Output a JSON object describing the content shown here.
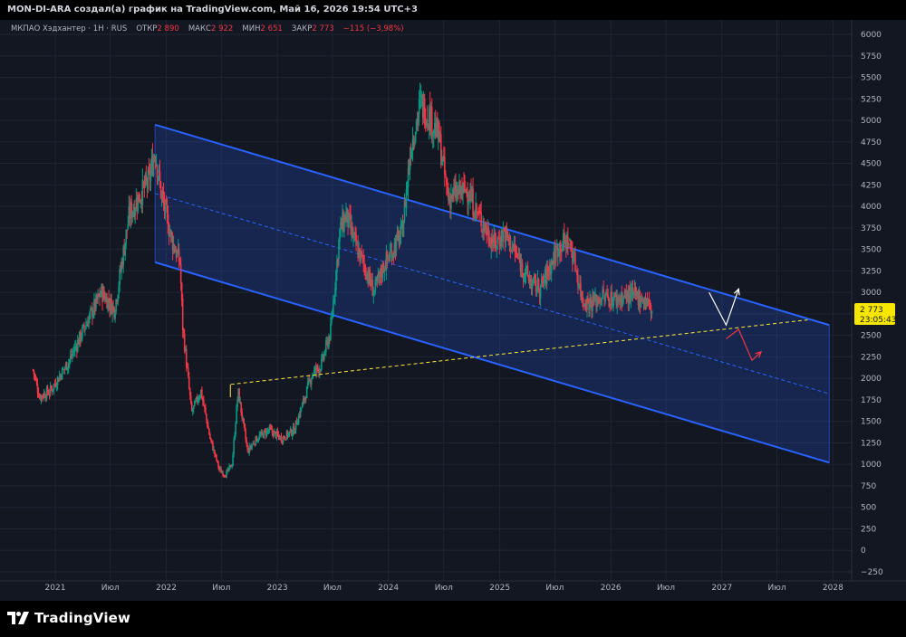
{
  "header": {
    "caption": "MON-DI-ARA создал(а) график на TradingView.com, Май 16, 2026 19:54 UTC+3"
  },
  "legend": {
    "symbol": "МКПАО Хэдхантер · 1Н · RUS",
    "open_label": "ОТКР",
    "open_value": "2 890",
    "high_label": "МАКС",
    "high_value": "2 922",
    "low_label": "МИН",
    "low_value": "2 651",
    "close_label": "ЗАКР",
    "close_value": "2 773",
    "change": "−115 (−3,98%)"
  },
  "price_badge": {
    "price": "2 773",
    "countdown": "23:05:43"
  },
  "footer": {
    "brand": "TradingView"
  },
  "colors": {
    "up": "#089981",
    "down": "#f23645",
    "channel": "#2962ff",
    "background": "#131722",
    "trendline": "#ffeb3b"
  },
  "chart_data": {
    "type": "candlestick",
    "y_axis": {
      "ticks": [
        "6000",
        "5750",
        "5500",
        "5250",
        "5000",
        "4750",
        "4500",
        "4250",
        "4000",
        "3750",
        "3500",
        "3250",
        "3000",
        "2750",
        "2500",
        "2250",
        "2000",
        "1750",
        "1500",
        "1250",
        "1000",
        "750",
        "500",
        "250",
        "0",
        "−250"
      ],
      "range": [
        -250,
        6000
      ]
    },
    "x_axis": {
      "ticks": [
        "2021",
        "Июл",
        "2022",
        "Июл",
        "2023",
        "Июл",
        "2024",
        "Июл",
        "2025",
        "Июл",
        "2026",
        "Июл",
        "2027",
        "Июл",
        "2028"
      ],
      "range": [
        "2020-09-01",
        "2028-05-01"
      ]
    },
    "price_path": [
      [
        "2020-10-20",
        2100
      ],
      [
        "2020-11-10",
        1790
      ],
      [
        "2020-12-15",
        1850
      ],
      [
        "2021-02-15",
        2200
      ],
      [
        "2021-04-15",
        2650
      ],
      [
        "2021-06-01",
        3000
      ],
      [
        "2021-07-15",
        2800
      ],
      [
        "2021-09-01",
        3900
      ],
      [
        "2021-10-01",
        4100
      ],
      [
        "2021-11-05",
        4300
      ],
      [
        "2021-11-25",
        4650
      ],
      [
        "2021-12-15",
        4150
      ],
      [
        "2022-01-20",
        3600
      ],
      [
        "2022-02-15",
        3350
      ],
      [
        "2022-02-24",
        2600
      ],
      [
        "2022-03-25",
        1600
      ],
      [
        "2022-04-25",
        1850
      ],
      [
        "2022-05-25",
        1300
      ],
      [
        "2022-06-25",
        930
      ],
      [
        "2022-07-15",
        880
      ],
      [
        "2022-08-05",
        1000
      ],
      [
        "2022-08-25",
        1850
      ],
      [
        "2022-09-25",
        1150
      ],
      [
        "2022-10-25",
        1300
      ],
      [
        "2022-12-05",
        1400
      ],
      [
        "2023-01-15",
        1300
      ],
      [
        "2023-02-25",
        1400
      ],
      [
        "2023-03-25",
        1700
      ],
      [
        "2023-04-25",
        2050
      ],
      [
        "2023-05-25",
        2150
      ],
      [
        "2023-06-25",
        2550
      ],
      [
        "2023-07-25",
        3700
      ],
      [
        "2023-08-15",
        3900
      ],
      [
        "2023-09-15",
        3550
      ],
      [
        "2023-10-15",
        3300
      ],
      [
        "2023-11-15",
        3000
      ],
      [
        "2023-12-15",
        3300
      ],
      [
        "2024-01-15",
        3500
      ],
      [
        "2024-02-15",
        3700
      ],
      [
        "2024-03-15",
        4700
      ],
      [
        "2024-04-15",
        5200
      ],
      [
        "2024-05-15",
        5050
      ],
      [
        "2024-06-15",
        4800
      ],
      [
        "2024-07-15",
        4100
      ],
      [
        "2024-08-15",
        4150
      ],
      [
        "2024-09-15",
        4200
      ],
      [
        "2024-10-15",
        3950
      ],
      [
        "2024-11-15",
        3750
      ],
      [
        "2024-12-15",
        3550
      ],
      [
        "2025-01-15",
        3700
      ],
      [
        "2025-02-15",
        3500
      ],
      [
        "2025-03-15",
        3300
      ],
      [
        "2025-04-15",
        3100
      ],
      [
        "2025-05-15",
        3050
      ],
      [
        "2025-06-15",
        3300
      ],
      [
        "2025-07-15",
        3550
      ],
      [
        "2025-08-15",
        3600
      ],
      [
        "2025-09-01",
        3400
      ],
      [
        "2025-10-01",
        2900
      ],
      [
        "2025-11-01",
        2880
      ],
      [
        "2025-12-01",
        2950
      ],
      [
        "2026-01-15",
        2920
      ],
      [
        "2026-03-01",
        2960
      ],
      [
        "2026-04-01",
        2950
      ],
      [
        "2026-05-01",
        2890
      ],
      [
        "2026-05-16",
        2773
      ]
    ],
    "channel": {
      "upper": {
        "from": [
          "2021-11-25",
          4950
        ],
        "to": [
          "2027-12-20",
          2620
        ]
      },
      "lower": {
        "from": [
          "2021-11-25",
          3350
        ],
        "to": [
          "2027-12-20",
          1020
        ]
      },
      "mid": {
        "from": [
          "2021-11-25",
          4150
        ],
        "to": [
          "2027-12-20",
          1820
        ]
      }
    },
    "trendline": {
      "from": [
        "2022-08-01",
        1930
      ],
      "to": [
        "2027-10-10",
        2680
      ]
    },
    "projection_up": [
      [
        "2026-11-20",
        3000
      ],
      [
        "2027-01-15",
        2620
      ],
      [
        "2027-02-25",
        3040
      ]
    ],
    "projection_down": [
      [
        "2027-01-15",
        2460
      ],
      [
        "2027-02-25",
        2570
      ],
      [
        "2027-04-10",
        2210
      ],
      [
        "2027-05-10",
        2310
      ]
    ]
  }
}
